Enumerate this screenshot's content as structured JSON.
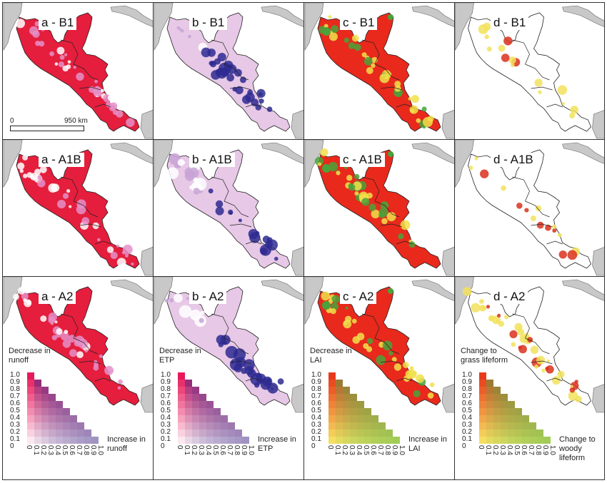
{
  "panels": [
    {
      "id": "a-B1",
      "label": "a - B1",
      "type": "runoff"
    },
    {
      "id": "b-B1",
      "label": "b - B1",
      "type": "etp"
    },
    {
      "id": "c-B1",
      "label": "c - B1",
      "type": "lai"
    },
    {
      "id": "d-B1",
      "label": "d - B1",
      "type": "lifeform"
    },
    {
      "id": "a-A1B",
      "label": "a - A1B",
      "type": "runoff"
    },
    {
      "id": "b-A1B",
      "label": "b - A1B",
      "type": "etp"
    },
    {
      "id": "c-A1B",
      "label": "c - A1B",
      "type": "lai"
    },
    {
      "id": "d-A1B",
      "label": "d - A1B",
      "type": "lifeform"
    },
    {
      "id": "a-A2",
      "label": "a - A2",
      "type": "runoff"
    },
    {
      "id": "b-A2",
      "label": "b - A2",
      "type": "etp"
    },
    {
      "id": "c-A2",
      "label": "c - A2",
      "type": "lai"
    },
    {
      "id": "d-A2",
      "label": "d - A2",
      "type": "lifeform"
    }
  ],
  "scale": {
    "start": "0",
    "end": "950 km"
  },
  "legends": [
    {
      "top_label": "Decrease in\nrunoff",
      "right_label": "Increase in\nrunoff",
      "low_color": "#ffffff",
      "top_color": "#e8195a",
      "right_color": "#2d2a8c"
    },
    {
      "top_label": "Decrease in\nETP",
      "right_label": "Increase in\nETP",
      "low_color": "#ffffff",
      "top_color": "#e8195a",
      "right_color": "#2d2a8c"
    },
    {
      "top_label": "Decrease in\nLAI",
      "right_label": "Increase in\nLAI",
      "low_color": "#f7f06a",
      "top_color": "#e83a1a",
      "right_color": "#3ab54a"
    },
    {
      "top_label": "Change to\ngrass lifeform",
      "right_label": "Change to\nwoody\nlifeform",
      "low_color": "#f7f06a",
      "top_color": "#e83a1a",
      "right_color": "#3ab54a"
    }
  ],
  "ticks": [
    "1.0",
    "0.9",
    "0.8",
    "0.7",
    "0.6",
    "0.5",
    "0.4",
    "0.3",
    "0.2",
    "0.1",
    "0"
  ],
  "xticks": [
    "0",
    "0.1",
    "0.2",
    "0.3",
    "0.4",
    "0.5",
    "0.6",
    "0.7",
    "0.8",
    "0.9",
    "1.0"
  ],
  "colors": {
    "land_gray": "#c8c8c8",
    "runoff_main": "#e41e3c",
    "runoff_light": "#e58fc8",
    "etp_main": "#2e2a90",
    "etp_light": "#e7c8e6",
    "lai_main": "#e8291c",
    "lai_green": "#4aa23a",
    "lai_yellow": "#f1e04a",
    "life_yellow": "#f2e25c",
    "life_red": "#d9311c",
    "outline": "#222222"
  }
}
